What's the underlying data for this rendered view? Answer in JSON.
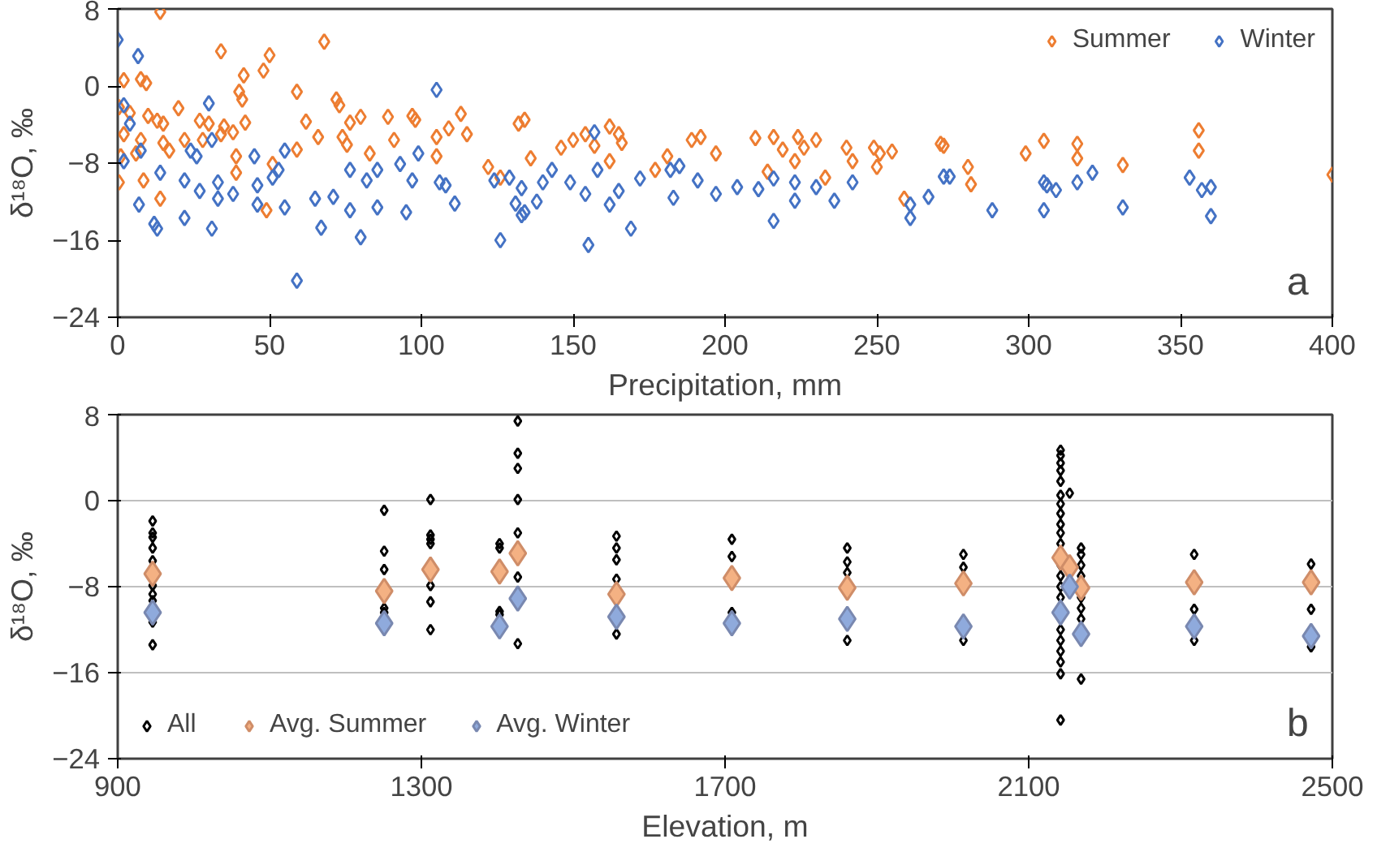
{
  "chart_data": [
    {
      "type": "scatter",
      "xlabel": "Precipitation, mm",
      "ylabel": "δ¹⁸O, ‰",
      "xlim": [
        0,
        400
      ],
      "xticks": [
        0,
        50,
        100,
        150,
        200,
        250,
        300,
        350,
        400
      ],
      "ylim": [
        -24,
        8
      ],
      "yticks": [
        -24,
        -16,
        -8,
        0,
        8
      ],
      "grid": false,
      "legend": "top right",
      "marker": "diamond",
      "annotations": [
        "a"
      ],
      "series": [
        {
          "name": "Summer",
          "color": "#ed7d31",
          "x": [
            14,
            34,
            50,
            68,
            41.5,
            48,
            2,
            7.6,
            9.4,
            40,
            41,
            59,
            72,
            73,
            20,
            0.4,
            4,
            10,
            13,
            15,
            27,
            30,
            35,
            38,
            42,
            62,
            76.5,
            80,
            89,
            97,
            98,
            113,
            109,
            132,
            134,
            2,
            7.6,
            15,
            22,
            28,
            34,
            66,
            74,
            75.5,
            91,
            105,
            115,
            1,
            6,
            17,
            39,
            59,
            83,
            105,
            122,
            51,
            0.4,
            8.5,
            14,
            49,
            39,
            126,
            136,
            146,
            150,
            154,
            157,
            162,
            165,
            166,
            162,
            181,
            177,
            189,
            192,
            197,
            210,
            216,
            219,
            224,
            226,
            230,
            223,
            214,
            233,
            240,
            242,
            249,
            251,
            255,
            250,
            259,
            271,
            272,
            280,
            281,
            299,
            305,
            316,
            316,
            331,
            356,
            356,
            400
          ],
          "values": [
            7.7,
            3.6,
            3.2,
            4.6,
            1.1,
            1.6,
            0.6,
            0.7,
            0.3,
            -0.6,
            -1.4,
            -0.6,
            -1.4,
            -2,
            -2.3,
            -2.2,
            -2.8,
            -3.1,
            -3.6,
            -3.9,
            -3.6,
            -3.9,
            -4.2,
            -4.8,
            -3.8,
            -3.7,
            -3.8,
            -3.2,
            -3.2,
            -3.1,
            -3.5,
            -2.9,
            -4.4,
            -3.9,
            -3.5,
            -5,
            -5.6,
            -5.9,
            -5.6,
            -5.6,
            -5,
            -5.3,
            -5.3,
            -6.1,
            -5.6,
            -5.3,
            -5,
            -7.3,
            -7,
            -6.7,
            -7.3,
            -6.6,
            -7,
            -7.3,
            -8.4,
            -8.1,
            -10,
            -9.8,
            -11.7,
            -12.9,
            -9,
            -9.5,
            -7.5,
            -6.4,
            -5.6,
            -5,
            -6.2,
            -4.2,
            -5,
            -5.9,
            -7.8,
            -7.3,
            -8.7,
            -5.6,
            -5.3,
            -7,
            -5.4,
            -5.3,
            -6.6,
            -5.3,
            -6.4,
            -5.6,
            -7.8,
            -8.9,
            -9.5,
            -6.4,
            -7.8,
            -6.4,
            -7,
            -6.8,
            -8.4,
            -11.7,
            -6,
            -6.2,
            -8.4,
            -10.2,
            -7,
            -5.7,
            -6,
            -7.5,
            -8.2,
            -4.6,
            -6.7,
            -9.2
          ]
        },
        {
          "name": "Winter",
          "color": "#4472c4",
          "x": [
            0,
            6.7,
            105,
            30,
            2,
            4,
            24,
            26,
            31,
            2,
            7.6,
            45,
            55,
            53,
            14,
            22,
            27,
            33,
            38,
            46,
            51,
            7,
            12,
            13,
            22,
            31,
            55,
            67,
            80,
            59,
            76.5,
            82,
            85.5,
            93,
            97,
            76.5,
            85.5,
            95,
            99,
            106,
            108,
            111,
            124,
            129,
            131,
            134,
            126,
            65,
            71,
            46,
            33,
            157,
            133,
            133,
            138,
            140,
            143,
            149,
            154,
            162,
            165,
            169,
            155,
            158,
            172,
            182,
            185,
            183,
            191,
            197,
            204,
            211,
            216,
            216,
            223,
            223,
            230,
            236,
            242,
            261,
            261,
            267,
            272,
            274,
            288,
            305,
            306,
            309,
            316,
            321,
            305,
            331,
            353,
            357,
            360,
            360
          ],
          "values": [
            4.8,
            3.1,
            -0.4,
            -1.8,
            -2,
            -3.9,
            -6.7,
            -7.3,
            -5.6,
            -7.8,
            -6.7,
            -7.3,
            -6.7,
            -8.7,
            -9,
            -9.8,
            -10.9,
            -10,
            -11.2,
            -10.3,
            -9.5,
            -12.3,
            -14.3,
            -14.8,
            -13.7,
            -14.8,
            -12.6,
            -14.7,
            -15.7,
            -20.2,
            -8.7,
            -9.8,
            -8.7,
            -8.1,
            -9.8,
            -12.9,
            -12.6,
            -13.1,
            -7,
            -10,
            -10.3,
            -12.2,
            -9.8,
            -9.5,
            -12.2,
            -13.1,
            -16,
            -11.7,
            -11.5,
            -12.3,
            -11.7,
            -4.8,
            -10.6,
            -13.4,
            -12,
            -10,
            -8.7,
            -10,
            -11.2,
            -12.3,
            -10.9,
            -14.8,
            -16.5,
            -8.7,
            -9.6,
            -8.7,
            -8.3,
            -11.6,
            -9.8,
            -11.2,
            -10.5,
            -10.7,
            -14,
            -9.6,
            -10,
            -11.9,
            -10.5,
            -11.9,
            -10,
            -12.3,
            -13.7,
            -11.5,
            -9.4,
            -9.4,
            -12.9,
            -10,
            -10.3,
            -10.8,
            -10,
            -9,
            -12.9,
            -12.6,
            -9.5,
            -10.8,
            -10.5,
            -13.5
          ]
        }
      ]
    },
    {
      "type": "scatter",
      "xlabel": "Elevation, m",
      "ylabel": "δ¹⁸O, ‰",
      "xlim": [
        900,
        2500
      ],
      "xticks": [
        900,
        1300,
        1700,
        2100,
        2500
      ],
      "ylim": [
        -24,
        8
      ],
      "yticks": [
        -24,
        -16,
        -8,
        0,
        8
      ],
      "grid": "y",
      "legend": "bottom left",
      "marker": "diamond",
      "annotations": [
        "b"
      ],
      "series": [
        {
          "name": "All",
          "color": "#000000",
          "x": [
            946,
            946,
            946,
            946,
            946,
            946,
            946,
            946,
            946,
            946,
            1251,
            1251,
            1251,
            1251,
            1251,
            1312,
            1312,
            1312,
            1312,
            1312,
            1312,
            1312,
            1403,
            1403,
            1403,
            1403,
            1427,
            1427,
            1427,
            1427,
            1427,
            1427,
            1427,
            1557,
            1557,
            1557,
            1557,
            1557,
            1709,
            1709,
            1709,
            1861,
            1861,
            1861,
            1861,
            2014,
            2014,
            2014,
            2142,
            2142,
            2142,
            2142,
            2142,
            2142,
            2142,
            2142,
            2142,
            2142,
            2142,
            2142,
            2142,
            2142,
            2142,
            2142,
            2142,
            2142,
            2142,
            2142,
            2142,
            2154,
            2169,
            2169,
            2169,
            2169,
            2169,
            2169,
            2169,
            2169,
            2318,
            2318,
            2318,
            2472,
            2472,
            2472
          ],
          "values": [
            -1.9,
            -3,
            -3.4,
            -4.4,
            -5.6,
            -7.9,
            -8.7,
            -9.3,
            -11.3,
            -13.4,
            -0.9,
            -4.7,
            -6.4,
            -10,
            -10.4,
            0.1,
            -3.2,
            -3.6,
            -4,
            -7.9,
            -9.4,
            -12,
            -4,
            -4.4,
            -10.3,
            -10.6,
            7.4,
            4.4,
            3,
            0.1,
            -3,
            -7.1,
            -13.3,
            -3.3,
            -4.4,
            -5.5,
            -7.3,
            -12.4,
            -3.6,
            -5.2,
            -10.4,
            -4.4,
            -5.7,
            -6.7,
            -13,
            -5,
            -6.2,
            -13,
            4.7,
            4.2,
            3.5,
            2.8,
            1.8,
            0.5,
            -0.3,
            -1.2,
            -2.2,
            -3,
            -4,
            -6,
            -7,
            -8,
            -9,
            -12,
            -13,
            -14,
            -15,
            -16.1,
            -20.4,
            0.7,
            -4.4,
            -5,
            -6,
            -7,
            -9,
            -10,
            -11,
            -16.6,
            -5,
            -10.1,
            -13,
            -5.9,
            -10.1,
            -13.6
          ]
        },
        {
          "name": "Avg. Summer",
          "color": "#f4b183",
          "x": [
            946,
            1251,
            1312,
            1403,
            1427,
            1557,
            1709,
            1861,
            2014,
            2142,
            2154,
            2169,
            2318,
            2472
          ],
          "values": [
            -6.8,
            -8.4,
            -6.4,
            -6.6,
            -4.9,
            -8.7,
            -7.2,
            -8.1,
            -7.7,
            -5.3,
            -6.2,
            -8.1,
            -7.6,
            -7.6
          ]
        },
        {
          "name": "Avg. Winter",
          "color": "#8faadc",
          "x": [
            946,
            1251,
            1403,
            1427,
            1557,
            1709,
            1861,
            2014,
            2142,
            2154,
            2169,
            2318,
            2472
          ],
          "values": [
            -10.4,
            -11.4,
            -11.7,
            -9.1,
            -10.8,
            -11.4,
            -11,
            -11.7,
            -10.4,
            -8,
            -12.4,
            -11.7,
            -12.6
          ]
        }
      ]
    }
  ]
}
